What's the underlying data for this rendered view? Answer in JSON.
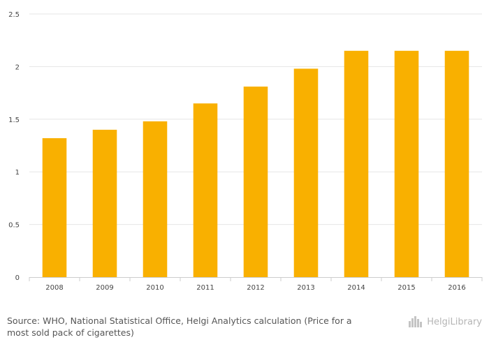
{
  "chart_data": {
    "type": "bar",
    "categories": [
      "2008",
      "2009",
      "2010",
      "2011",
      "2012",
      "2013",
      "2014",
      "2015",
      "2016"
    ],
    "values": [
      1.32,
      1.4,
      1.48,
      1.65,
      1.81,
      1.98,
      2.15,
      2.15,
      2.15
    ],
    "ylim": [
      0,
      2.5
    ],
    "yticks": [
      0,
      0.5,
      1,
      1.5,
      2,
      2.5
    ],
    "ytick_labels": [
      "0",
      "0.5",
      "1",
      "1.5",
      "2",
      "2.5"
    ],
    "grid": true,
    "legend": "none",
    "colors": {
      "bar": "#F9B000",
      "grid": "#e6e6e6",
      "axis": "#cccccc"
    }
  },
  "footer": {
    "source": "Source: WHO, National Statistical Office, Helgi Analytics calculation (Price for a most sold pack of cigarettes)",
    "logo_text": "HelgiLibrary"
  }
}
